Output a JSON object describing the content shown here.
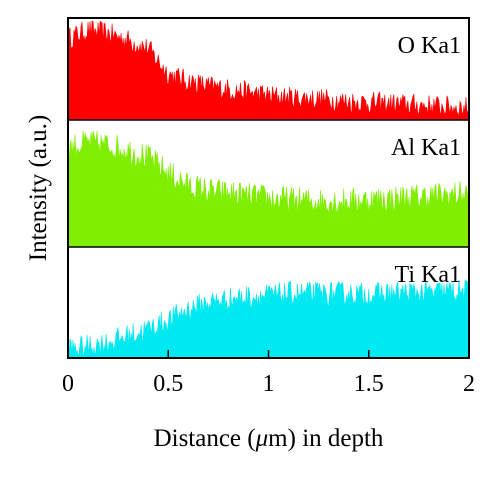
{
  "chart_data": {
    "type": "area",
    "xlabel": "Distance (μm) in depth",
    "ylabel": "Intensity (a.u.)",
    "xlim": [
      0,
      2
    ],
    "ylim": [
      0,
      1
    ],
    "x_ticks": [
      "0",
      "0.5",
      "1",
      "1.5",
      "2"
    ],
    "grid": false,
    "legend": "none",
    "panels": [
      {
        "name": "O Ka1",
        "color": "#ff0000",
        "x": [
          0,
          0.1,
          0.2,
          0.3,
          0.4,
          0.5,
          0.6,
          0.7,
          0.8,
          0.9,
          1.0,
          1.1,
          1.2,
          1.3,
          1.4,
          1.5,
          1.6,
          1.7,
          1.8,
          1.9,
          2.0
        ],
        "y": [
          0.8,
          0.88,
          0.85,
          0.78,
          0.7,
          0.45,
          0.38,
          0.33,
          0.3,
          0.27,
          0.24,
          0.22,
          0.21,
          0.2,
          0.18,
          0.17,
          0.16,
          0.15,
          0.14,
          0.13,
          0.12
        ]
      },
      {
        "name": "Al Ka1",
        "color": "#80ee00",
        "x": [
          0,
          0.1,
          0.2,
          0.3,
          0.4,
          0.5,
          0.6,
          0.7,
          0.8,
          0.9,
          1.0,
          1.1,
          1.2,
          1.3,
          1.4,
          1.5,
          1.6,
          1.7,
          1.8,
          1.9,
          2.0
        ],
        "y": [
          0.78,
          0.82,
          0.8,
          0.76,
          0.7,
          0.58,
          0.48,
          0.44,
          0.42,
          0.4,
          0.38,
          0.37,
          0.36,
          0.36,
          0.36,
          0.37,
          0.38,
          0.39,
          0.4,
          0.41,
          0.42
        ]
      },
      {
        "name": "Ti Ka1",
        "color": "#00e8f0",
        "x": [
          0,
          0.1,
          0.2,
          0.3,
          0.4,
          0.5,
          0.6,
          0.7,
          0.8,
          0.9,
          1.0,
          1.1,
          1.2,
          1.3,
          1.4,
          1.5,
          1.6,
          1.7,
          1.8,
          1.9,
          2.0
        ],
        "y": [
          0.08,
          0.1,
          0.14,
          0.2,
          0.26,
          0.34,
          0.44,
          0.5,
          0.53,
          0.55,
          0.56,
          0.58,
          0.58,
          0.58,
          0.58,
          0.57,
          0.58,
          0.59,
          0.59,
          0.6,
          0.6
        ]
      }
    ]
  }
}
